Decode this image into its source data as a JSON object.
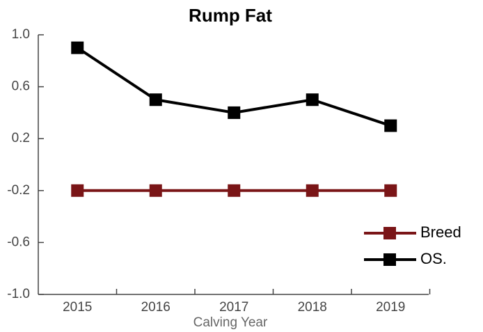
{
  "chart_data": {
    "type": "line",
    "title": "Rump Fat",
    "x_label": "Calving Year",
    "categories": [
      "2015",
      "2016",
      "2017",
      "2018",
      "2019"
    ],
    "series": [
      {
        "name": "Breed",
        "color": "#7a1517",
        "values": [
          -0.2,
          -0.2,
          -0.2,
          -0.2,
          -0.2
        ]
      },
      {
        "name": "OS.",
        "color": "#000000",
        "values": [
          0.9,
          0.5,
          0.4,
          0.5,
          0.3
        ]
      }
    ],
    "ylim": [
      -1,
      1
    ],
    "yticks": [
      {
        "value": -1,
        "label": "-1.0"
      },
      -0.6,
      -0.2,
      0.2,
      0.6,
      {
        "value": 1,
        "label": "1.0"
      }
    ],
    "legend": "lower right"
  }
}
